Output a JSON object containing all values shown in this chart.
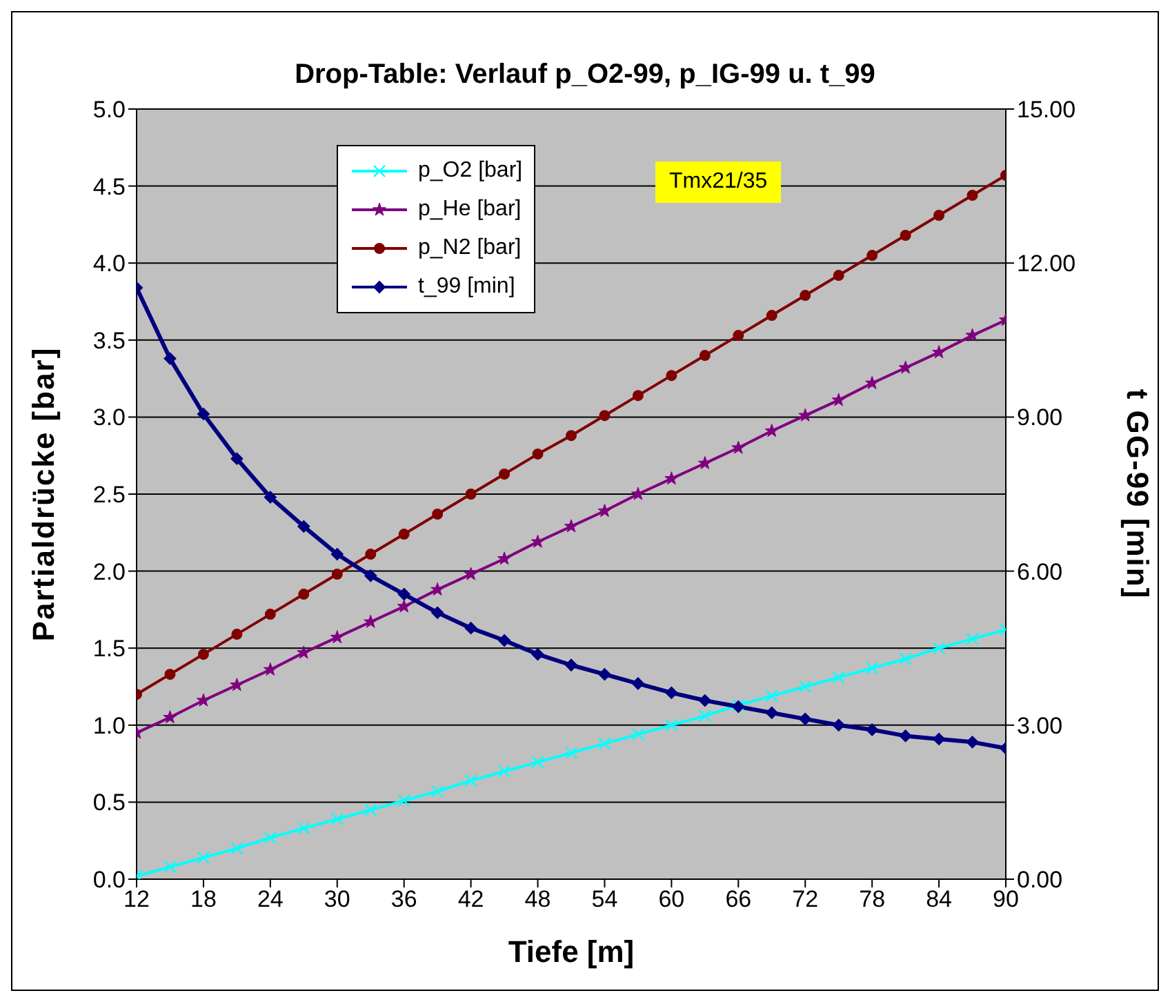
{
  "chart_data": {
    "type": "line",
    "title": "Drop-Table: Verlauf p_O2-99, p_IG-99 u. t_99",
    "xlabel": "Tiefe [m]",
    "ylabel": "Partialdrücke [bar]",
    "y2label": "t  GG-99 [min]",
    "annotations": [
      "Tmx21/35"
    ],
    "x": [
      12,
      15,
      18,
      21,
      24,
      27,
      30,
      33,
      36,
      39,
      42,
      45,
      48,
      51,
      54,
      57,
      60,
      63,
      66,
      69,
      72,
      75,
      78,
      81,
      84,
      87,
      90
    ],
    "series": [
      {
        "name": "p_O2 [bar]",
        "color": "#00ffff",
        "marker": "cross",
        "values": [
          0.02,
          0.08,
          0.14,
          0.2,
          0.27,
          0.33,
          0.39,
          0.45,
          0.51,
          0.57,
          0.64,
          0.7,
          0.76,
          0.82,
          0.88,
          0.94,
          1.0,
          1.06,
          1.13,
          1.19,
          1.25,
          1.31,
          1.37,
          1.43,
          1.5,
          1.56,
          1.62
        ]
      },
      {
        "name": "p_He [bar]",
        "color": "#800080",
        "marker": "star",
        "values": [
          0.95,
          1.05,
          1.16,
          1.26,
          1.36,
          1.47,
          1.57,
          1.67,
          1.77,
          1.88,
          1.98,
          2.08,
          2.19,
          2.29,
          2.39,
          2.5,
          2.6,
          2.7,
          2.8,
          2.91,
          3.01,
          3.11,
          3.22,
          3.32,
          3.42,
          3.53,
          3.63
        ]
      },
      {
        "name": "p_N2 [bar]",
        "color": "#800000",
        "marker": "circle",
        "values": [
          1.2,
          1.33,
          1.46,
          1.59,
          1.72,
          1.85,
          1.98,
          2.11,
          2.24,
          2.37,
          2.5,
          2.63,
          2.76,
          2.88,
          3.01,
          3.14,
          3.27,
          3.4,
          3.53,
          3.66,
          3.79,
          3.92,
          4.05,
          4.18,
          4.31,
          4.44,
          4.57
        ]
      },
      {
        "name": "t_99 [min]",
        "color": "#000080",
        "marker": "diamond",
        "axis": "y2",
        "values": [
          11.52,
          10.14,
          9.06,
          8.19,
          7.44,
          6.87,
          6.33,
          5.91,
          5.55,
          5.19,
          4.89,
          4.65,
          4.38,
          4.17,
          3.99,
          3.81,
          3.63,
          3.48,
          3.36,
          3.24,
          3.12,
          3.0,
          2.91,
          2.79,
          2.73,
          2.67,
          2.55
        ]
      }
    ],
    "xlim": [
      12,
      90
    ],
    "xticks": [
      12,
      18,
      24,
      30,
      36,
      42,
      48,
      54,
      60,
      66,
      72,
      78,
      84,
      90
    ],
    "ylim": [
      0,
      5
    ],
    "yticks": [
      {
        "value": 0,
        "label": "0.0"
      },
      {
        "value": 0.5,
        "label": "0.5"
      },
      {
        "value": 1,
        "label": "1.0"
      },
      {
        "value": 1.5,
        "label": "1.5"
      },
      {
        "value": 2,
        "label": "2.0"
      },
      {
        "value": 2.5,
        "label": "2.5"
      },
      {
        "value": 3,
        "label": "3.0"
      },
      {
        "value": 3.5,
        "label": "3.5"
      },
      {
        "value": 4,
        "label": "4.0"
      },
      {
        "value": 4.5,
        "label": "4.5"
      },
      {
        "value": 5,
        "label": "5.0"
      }
    ],
    "y2lim": [
      0,
      15
    ],
    "y2ticks": [
      {
        "value": 0,
        "label": "0.00"
      },
      {
        "value": 3,
        "label": "3.00"
      },
      {
        "value": 6,
        "label": "6.00"
      },
      {
        "value": 9,
        "label": "9.00"
      },
      {
        "value": 12,
        "label": "12.00"
      },
      {
        "value": 15,
        "label": "15.00"
      }
    ],
    "grid": "y",
    "legend": "top left",
    "line_style": "solid"
  }
}
